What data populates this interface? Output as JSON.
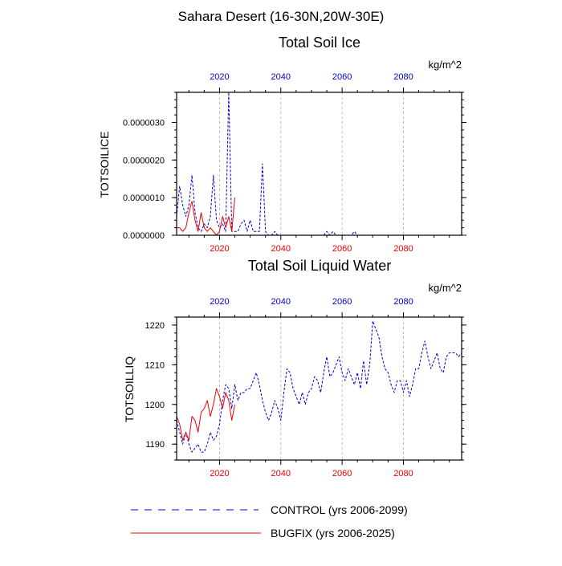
{
  "page_title": "Sahara Desert (16-30N,20W-30E)",
  "colors": {
    "control": "#0000cc",
    "bugfix": "#ee0000",
    "axis": "#000000",
    "grid": "#aaaaaa"
  },
  "legend": {
    "control_label": "CONTROL (yrs 2006-2099)",
    "bugfix_label": "BUGFIX (yrs 2006-2025)"
  },
  "chart_data": [
    {
      "type": "line",
      "title": "Total Soil Ice",
      "ylabel": "TOTSOILICE",
      "units": "kg/m^2",
      "xlim": [
        2006,
        2099
      ],
      "ylim": [
        0,
        3.8e-06
      ],
      "yticks": [
        0,
        1e-06,
        2e-06,
        3e-06
      ],
      "ytick_labels": [
        "0.0000000",
        "0.0000010",
        "0.0000020",
        "0.0000030"
      ],
      "ytick_minor": 2e-07,
      "xticks": [
        2020,
        2040,
        2060,
        2080
      ],
      "xtick_labels": [
        "2020",
        "2040",
        "2060",
        "2080"
      ],
      "grid": "x-dashed",
      "series": [
        {
          "name": "CONTROL",
          "style": "dashed",
          "x": [
            2006,
            2007,
            2008,
            2009,
            2010,
            2011,
            2012,
            2013,
            2014,
            2015,
            2016,
            2017,
            2018,
            2019,
            2020,
            2021,
            2022,
            2023,
            2024,
            2025,
            2026,
            2027,
            2028,
            2029,
            2030,
            2031,
            2032,
            2033,
            2034,
            2035,
            2036,
            2037,
            2038,
            2039,
            2040,
            2041,
            2042,
            2043,
            2044,
            2045,
            2046,
            2047,
            2048,
            2049,
            2050,
            2051,
            2052,
            2053,
            2054,
            2055,
            2056,
            2057,
            2058,
            2059,
            2060,
            2061,
            2062,
            2063,
            2064,
            2065,
            2066,
            2067,
            2068,
            2069,
            2070,
            2071,
            2072,
            2073,
            2074,
            2075,
            2076,
            2077,
            2078,
            2079,
            2080,
            2081,
            2082,
            2083,
            2084,
            2085,
            2086,
            2087,
            2088,
            2089,
            2090,
            2091,
            2092,
            2093,
            2094,
            2095,
            2096,
            2097,
            2098,
            2099
          ],
          "y": [
            5e-07,
            1.3e-06,
            8e-07,
            5e-07,
            8e-07,
            1.6e-06,
            6e-07,
            2e-07,
            1e-07,
            3e-07,
            2e-07,
            5e-07,
            1.6e-06,
            4e-07,
            2e-07,
            3e-07,
            1e-07,
            3.8e-06,
            1e-07,
            1e-07,
            1e-07,
            3e-07,
            4e-07,
            1e-07,
            4e-07,
            1e-07,
            1e-07,
            1e-07,
            1.9e-06,
            1e-07,
            0,
            0,
            1e-07,
            0,
            0,
            0,
            0,
            0,
            0,
            0,
            0,
            0,
            0,
            0,
            0,
            0,
            0,
            0,
            0,
            1e-07,
            0,
            1e-07,
            0,
            0,
            0,
            0,
            0,
            0,
            1e-07,
            0,
            0,
            0,
            0,
            0,
            0,
            0,
            0,
            0,
            0,
            0,
            0,
            0,
            0,
            0,
            0,
            0,
            0,
            0,
            0,
            0,
            0,
            0,
            0,
            0,
            0,
            0,
            0,
            0,
            0,
            0,
            0,
            0,
            0,
            0
          ]
        },
        {
          "name": "BUGFIX",
          "style": "solid",
          "x": [
            2006,
            2007,
            2008,
            2009,
            2010,
            2011,
            2012,
            2013,
            2014,
            2015,
            2016,
            2017,
            2018,
            2019,
            2020,
            2021,
            2022,
            2023,
            2024,
            2025
          ],
          "y": [
            2e-07,
            2e-07,
            1e-07,
            2e-07,
            6e-07,
            9e-07,
            4e-07,
            1e-07,
            6e-07,
            2e-07,
            1e-07,
            2e-07,
            1e-07,
            0,
            1e-07,
            5e-07,
            2e-07,
            5e-07,
            1e-07,
            1e-06
          ]
        }
      ]
    },
    {
      "type": "line",
      "title": "Total Soil Liquid Water",
      "ylabel": "TOTSOILLIQ",
      "units": "kg/m^2",
      "xlim": [
        2006,
        2099
      ],
      "ylim": [
        1186,
        1222
      ],
      "yticks": [
        1190,
        1200,
        1210,
        1220
      ],
      "ytick_labels": [
        "1190",
        "1200",
        "1210",
        "1220"
      ],
      "ytick_minor": 2,
      "xticks": [
        2020,
        2040,
        2060,
        2080
      ],
      "xtick_labels": [
        "2020",
        "2040",
        "2060",
        "2080"
      ],
      "grid": "x-dashed",
      "series": [
        {
          "name": "CONTROL",
          "style": "dashed",
          "x": [
            2006,
            2007,
            2008,
            2009,
            2010,
            2011,
            2012,
            2013,
            2014,
            2015,
            2016,
            2017,
            2018,
            2019,
            2020,
            2021,
            2022,
            2023,
            2024,
            2025,
            2026,
            2027,
            2028,
            2029,
            2030,
            2031,
            2032,
            2033,
            2034,
            2035,
            2036,
            2037,
            2038,
            2039,
            2040,
            2041,
            2042,
            2043,
            2044,
            2045,
            2046,
            2047,
            2048,
            2049,
            2050,
            2051,
            2052,
            2053,
            2054,
            2055,
            2056,
            2057,
            2058,
            2059,
            2060,
            2061,
            2062,
            2063,
            2064,
            2065,
            2066,
            2067,
            2068,
            2069,
            2070,
            2071,
            2072,
            2073,
            2074,
            2075,
            2076,
            2077,
            2078,
            2079,
            2080,
            2081,
            2082,
            2083,
            2084,
            2085,
            2086,
            2087,
            2088,
            2089,
            2090,
            2091,
            2092,
            2093,
            2094,
            2095,
            2096,
            2097,
            2098,
            2099
          ],
          "y": [
            1196,
            1193,
            1190,
            1193,
            1190,
            1188,
            1189,
            1190,
            1188,
            1188,
            1190,
            1193,
            1191,
            1192,
            1195,
            1201,
            1205,
            1204,
            1199,
            1205,
            1201,
            1203,
            1203,
            1204,
            1204,
            1206,
            1208,
            1205,
            1201,
            1198,
            1196,
            1198,
            1201,
            1199,
            1196,
            1203,
            1209,
            1208,
            1204,
            1202,
            1200,
            1203,
            1200,
            1203,
            1204,
            1207,
            1206,
            1203,
            1208,
            1212,
            1207,
            1208,
            1210,
            1212,
            1208,
            1206,
            1209,
            1207,
            1205,
            1208,
            1204,
            1211,
            1205,
            1210,
            1221,
            1219,
            1217,
            1212,
            1209,
            1208,
            1205,
            1203,
            1206,
            1206,
            1203,
            1206,
            1202,
            1205,
            1209,
            1209,
            1213,
            1216,
            1212,
            1209,
            1211,
            1213,
            1209,
            1208,
            1212,
            1213,
            1213,
            1213,
            1212,
            1213
          ]
        },
        {
          "name": "BUGFIX",
          "style": "solid",
          "x": [
            2006,
            2007,
            2008,
            2009,
            2010,
            2011,
            2012,
            2013,
            2014,
            2015,
            2016,
            2017,
            2018,
            2019,
            2020,
            2021,
            2022,
            2023,
            2024,
            2025
          ],
          "y": [
            1197,
            1195,
            1191,
            1193,
            1191,
            1197,
            1196,
            1193,
            1198,
            1199,
            1201,
            1197,
            1200,
            1204,
            1202,
            1199,
            1203,
            1201,
            1196,
            1200
          ]
        }
      ]
    }
  ]
}
